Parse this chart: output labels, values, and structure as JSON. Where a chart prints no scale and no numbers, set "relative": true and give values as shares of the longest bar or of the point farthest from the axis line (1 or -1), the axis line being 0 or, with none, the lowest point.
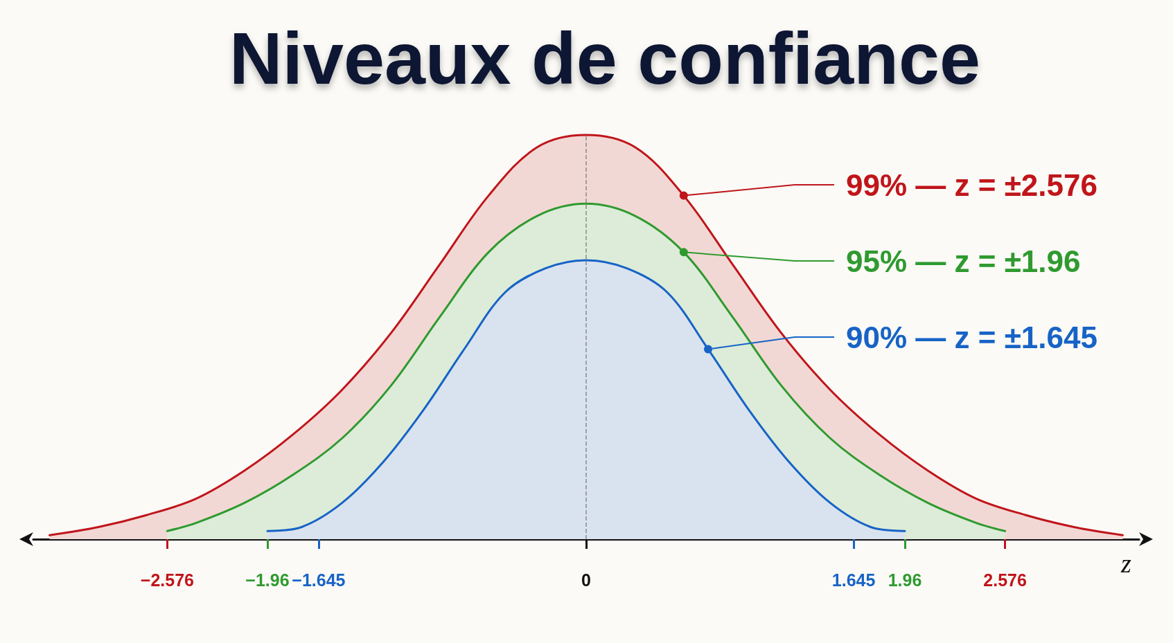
{
  "chart_data": {
    "type": "area",
    "title": "Niveaux de confiance",
    "xlabel": "z",
    "relative": true,
    "legend": "top right",
    "xlim": [
      -3.4,
      3.4
    ],
    "xticks": [
      -2.576,
      -1.96,
      -1.645,
      0,
      1.645,
      1.96,
      2.576
    ],
    "ref_lines": [
      {
        "axis": "x",
        "value": 0,
        "color": "#8a8a8a",
        "line_style": "dashed"
      }
    ],
    "series": [
      {
        "name": "99% — z = ±2.576",
        "color": "#c0151b",
        "x": [
          -3.3,
          -3.0,
          -2.7,
          -2.4,
          -2.1,
          -1.8,
          -1.5,
          -1.2,
          -0.9,
          -0.6,
          -0.3,
          0,
          0.3,
          0.6,
          0.9,
          1.2,
          1.5,
          1.8,
          2.1,
          2.4,
          2.7,
          3.0,
          3.3
        ],
        "values": [
          0.01,
          0.03,
          0.06,
          0.1,
          0.17,
          0.26,
          0.37,
          0.51,
          0.68,
          0.85,
          0.97,
          1,
          0.97,
          0.85,
          0.68,
          0.51,
          0.37,
          0.26,
          0.17,
          0.1,
          0.06,
          0.03,
          0.01
        ]
      },
      {
        "name": "95% — z = ±1.96",
        "color": "#2f9a2f",
        "x": [
          -2.576,
          -2.4,
          -2.1,
          -1.8,
          -1.5,
          -1.2,
          -0.9,
          -0.6,
          -0.3,
          0,
          0.3,
          0.6,
          0.9,
          1.2,
          1.5,
          1.8,
          2.1,
          2.4,
          2.576
        ],
        "values": [
          0.02,
          0.04,
          0.09,
          0.16,
          0.25,
          0.38,
          0.55,
          0.71,
          0.8,
          0.83,
          0.8,
          0.71,
          0.55,
          0.38,
          0.25,
          0.16,
          0.09,
          0.04,
          0.02
        ]
      },
      {
        "name": "90% — z = ±1.645",
        "color": "#1763c6",
        "x": [
          -1.96,
          -1.75,
          -1.5,
          -1.25,
          -1.0,
          -0.75,
          -0.5,
          -0.25,
          0,
          0.25,
          0.5,
          0.75,
          1.0,
          1.25,
          1.5,
          1.75,
          1.96
        ],
        "values": [
          0.02,
          0.03,
          0.09,
          0.19,
          0.32,
          0.47,
          0.61,
          0.67,
          0.69,
          0.67,
          0.61,
          0.47,
          0.32,
          0.19,
          0.09,
          0.03,
          0.02
        ]
      }
    ]
  }
}
